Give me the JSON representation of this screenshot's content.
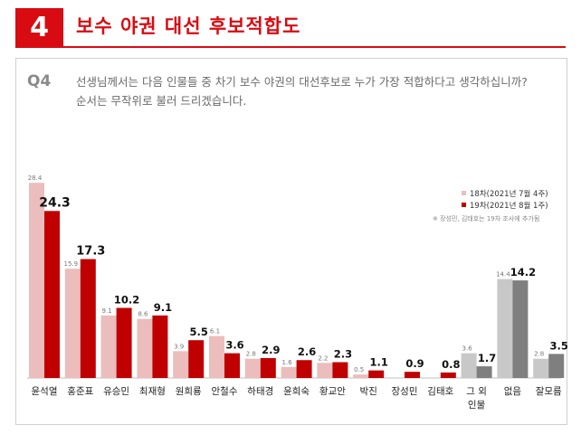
{
  "header": {
    "number": "4",
    "title": "보수 야권 대선 후보적합도"
  },
  "question": {
    "label": "Q4",
    "line1": "선생님께서는 다음 인물들 중 차기 보수 야권의 대선후보로 누가 가장 적합하다고 생각하십니까?",
    "line2": "순서는 무작위로 불러 드리겠습니다."
  },
  "legend": {
    "items": [
      {
        "label": "18차(2021년 7월 4주)",
        "color": "#ebbdbd"
      },
      {
        "label": "19차(2021년 8월 1주)",
        "color": "#c00000"
      }
    ],
    "note": "※ 장성민, 김태호는 19차 조사에 추가됨"
  },
  "colors": {
    "accent": "#d90b12",
    "prev_candidate": "#ebbdbd",
    "curr_candidate": "#c00000",
    "prev_other": "#c8c8c8",
    "curr_other": "#7f7f7f"
  },
  "chart_data": {
    "type": "bar",
    "categories": [
      "윤석열",
      "홍준표",
      "유승민",
      "최재형",
      "원희룡",
      "안철수",
      "하태경",
      "윤희숙",
      "황교안",
      "박진",
      "장성민",
      "김태호",
      "그 외\n인물",
      "없음",
      "잘모름"
    ],
    "category_lines": [
      [
        "윤석열"
      ],
      [
        "홍준표"
      ],
      [
        "유승민"
      ],
      [
        "최재형"
      ],
      [
        "원희룡"
      ],
      [
        "안철수"
      ],
      [
        "하태경"
      ],
      [
        "윤희숙"
      ],
      [
        "황교안"
      ],
      [
        "박진"
      ],
      [
        "장성민"
      ],
      [
        "김태호"
      ],
      [
        "그 외",
        "인물"
      ],
      [
        "없음"
      ],
      [
        "잘모름"
      ]
    ],
    "series": [
      {
        "name": "18차(2021년 7월 4주)",
        "values": [
          28.4,
          15.9,
          9.1,
          8.6,
          3.9,
          6.1,
          2.8,
          1.6,
          2.2,
          0.5,
          null,
          null,
          3.6,
          14.4,
          2.8
        ]
      },
      {
        "name": "19차(2021년 8월 1주)",
        "values": [
          24.3,
          17.3,
          10.2,
          9.1,
          5.5,
          3.6,
          2.9,
          2.6,
          2.3,
          1.1,
          0.9,
          0.8,
          1.7,
          14.2,
          3.5
        ]
      }
    ],
    "prev_labels": [
      "28.4",
      "15.9",
      "9.1",
      "8.6",
      "3.9",
      "6.1",
      "2.8",
      "1.6",
      "2.2",
      "0.5",
      "",
      "",
      "3.6",
      "14.4",
      "2.8"
    ],
    "curr_labels": [
      "24.3",
      "17.3",
      "10.2",
      "9.1",
      "5.5",
      "3.6",
      "2.9",
      "2.6",
      "2.3",
      "1.1",
      "0.9",
      "0.8",
      "1.7",
      "14.2",
      "3.5"
    ],
    "gray_from_index": 12,
    "ylim": [
      0,
      30
    ],
    "grid": false,
    "legend_position": "right"
  }
}
